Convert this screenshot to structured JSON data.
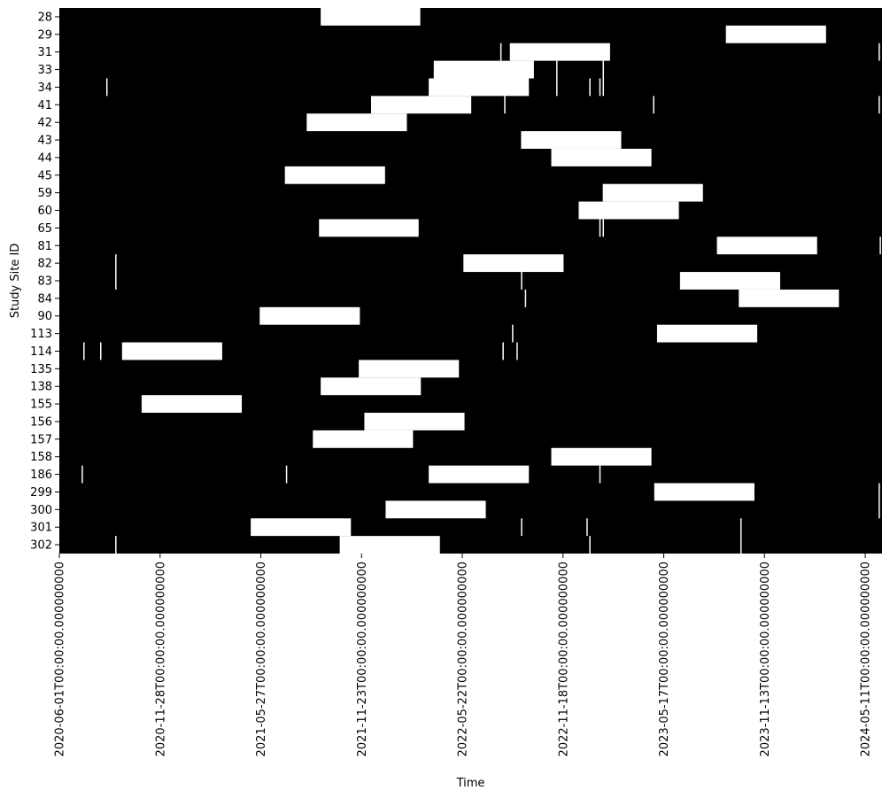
{
  "chart_data": {
    "type": "heatmap",
    "title": "",
    "xlabel": "Time",
    "ylabel": "Study Site ID",
    "colors": {
      "background": "#000000",
      "active": "#ffffff"
    },
    "x_range": [
      "2020-06-01",
      "2024-06-10"
    ],
    "xticks": [
      {
        "date": "2020-06-01",
        "label": "2020-06-01T00:00:00.000000000"
      },
      {
        "date": "2020-11-28",
        "label": "2020-11-28T00:00:00.000000000"
      },
      {
        "date": "2021-05-27",
        "label": "2021-05-27T00:00:00.000000000"
      },
      {
        "date": "2021-11-23",
        "label": "2021-11-23T00:00:00.000000000"
      },
      {
        "date": "2022-05-22",
        "label": "2022-05-22T00:00:00.000000000"
      },
      {
        "date": "2022-11-18",
        "label": "2022-11-18T00:00:00.000000000"
      },
      {
        "date": "2023-05-17",
        "label": "2023-05-17T00:00:00.000000000"
      },
      {
        "date": "2023-11-13",
        "label": "2023-11-13T00:00:00.000000000"
      },
      {
        "date": "2024-05-11",
        "label": "2024-05-11T00:00:00.000000000"
      }
    ],
    "sites": [
      "28",
      "29",
      "31",
      "33",
      "34",
      "41",
      "42",
      "43",
      "44",
      "45",
      "59",
      "60",
      "65",
      "81",
      "82",
      "83",
      "84",
      "90",
      "113",
      "114",
      "135",
      "138",
      "155",
      "156",
      "157",
      "158",
      "186",
      "299",
      "300",
      "301",
      "302"
    ],
    "active_periods": [
      {
        "site": "28",
        "start": "2021-09-11",
        "end": "2022-03-08"
      },
      {
        "site": "29",
        "start": "2023-09-05",
        "end": "2024-03-02"
      },
      {
        "site": "31",
        "start": "2022-08-15",
        "end": "2023-02-10"
      },
      {
        "site": "33",
        "start": "2022-04-01",
        "end": "2022-09-27"
      },
      {
        "site": "34",
        "start": "2022-03-23",
        "end": "2022-09-18"
      },
      {
        "site": "41",
        "start": "2021-12-10",
        "end": "2022-06-07"
      },
      {
        "site": "42",
        "start": "2021-08-17",
        "end": "2022-02-12"
      },
      {
        "site": "43",
        "start": "2022-09-04",
        "end": "2023-03-02"
      },
      {
        "site": "44",
        "start": "2022-10-28",
        "end": "2023-04-25"
      },
      {
        "site": "45",
        "start": "2021-07-09",
        "end": "2022-01-04"
      },
      {
        "site": "59",
        "start": "2023-01-28",
        "end": "2023-07-26"
      },
      {
        "site": "60",
        "start": "2022-12-16",
        "end": "2023-06-13"
      },
      {
        "site": "65",
        "start": "2021-09-08",
        "end": "2022-03-05"
      },
      {
        "site": "81",
        "start": "2023-08-20",
        "end": "2024-02-15"
      },
      {
        "site": "82",
        "start": "2022-05-24",
        "end": "2022-11-19"
      },
      {
        "site": "83",
        "start": "2023-06-15",
        "end": "2023-12-11"
      },
      {
        "site": "84",
        "start": "2023-09-28",
        "end": "2024-03-25"
      },
      {
        "site": "90",
        "start": "2021-05-25",
        "end": "2021-11-20"
      },
      {
        "site": "113",
        "start": "2023-05-05",
        "end": "2023-10-31"
      },
      {
        "site": "114",
        "start": "2020-09-21",
        "end": "2021-03-19"
      },
      {
        "site": "135",
        "start": "2021-11-18",
        "end": "2022-05-16"
      },
      {
        "site": "138",
        "start": "2021-09-11",
        "end": "2022-03-09"
      },
      {
        "site": "155",
        "start": "2020-10-26",
        "end": "2021-04-23"
      },
      {
        "site": "156",
        "start": "2021-11-28",
        "end": "2022-05-26"
      },
      {
        "site": "157",
        "start": "2021-08-28",
        "end": "2022-02-23"
      },
      {
        "site": "158",
        "start": "2022-10-28",
        "end": "2023-04-25"
      },
      {
        "site": "186",
        "start": "2022-03-23",
        "end": "2022-09-18"
      },
      {
        "site": "299",
        "start": "2023-04-30",
        "end": "2023-10-26"
      },
      {
        "site": "300",
        "start": "2022-01-05",
        "end": "2022-07-03"
      },
      {
        "site": "301",
        "start": "2021-05-09",
        "end": "2021-11-04"
      },
      {
        "site": "302",
        "start": "2021-10-15",
        "end": "2022-04-12"
      }
    ],
    "short_events": [
      {
        "site": "31",
        "date": "2022-07-30"
      },
      {
        "site": "31",
        "date": "2024-06-05"
      },
      {
        "site": "33",
        "date": "2022-11-07"
      },
      {
        "site": "33",
        "date": "2023-01-29"
      },
      {
        "site": "34",
        "date": "2020-08-25"
      },
      {
        "site": "34",
        "date": "2022-11-07"
      },
      {
        "site": "34",
        "date": "2023-01-05"
      },
      {
        "site": "34",
        "date": "2023-01-23"
      },
      {
        "site": "34",
        "date": "2023-01-29"
      },
      {
        "site": "41",
        "date": "2022-08-06"
      },
      {
        "site": "41",
        "date": "2023-04-29"
      },
      {
        "site": "41",
        "date": "2024-06-05"
      },
      {
        "site": "65",
        "date": "2023-01-23"
      },
      {
        "site": "65",
        "date": "2023-01-29"
      },
      {
        "site": "81",
        "date": "2024-06-07"
      },
      {
        "site": "82",
        "date": "2020-09-10"
      },
      {
        "site": "83",
        "date": "2020-09-10"
      },
      {
        "site": "83",
        "date": "2022-09-05"
      },
      {
        "site": "84",
        "date": "2022-09-12"
      },
      {
        "site": "113",
        "date": "2022-08-20"
      },
      {
        "site": "114",
        "date": "2020-07-15"
      },
      {
        "site": "114",
        "date": "2020-08-14"
      },
      {
        "site": "114",
        "date": "2022-08-03"
      },
      {
        "site": "114",
        "date": "2022-08-28"
      },
      {
        "site": "186",
        "date": "2020-07-12"
      },
      {
        "site": "186",
        "date": "2021-07-12"
      },
      {
        "site": "186",
        "date": "2023-01-23"
      },
      {
        "site": "299",
        "date": "2024-06-05"
      },
      {
        "site": "300",
        "date": "2024-06-05"
      },
      {
        "site": "301",
        "date": "2022-09-05"
      },
      {
        "site": "301",
        "date": "2022-12-31"
      },
      {
        "site": "301",
        "date": "2023-10-02"
      },
      {
        "site": "302",
        "date": "2020-09-10"
      },
      {
        "site": "302",
        "date": "2023-01-05"
      },
      {
        "site": "302",
        "date": "2023-10-02"
      }
    ]
  }
}
